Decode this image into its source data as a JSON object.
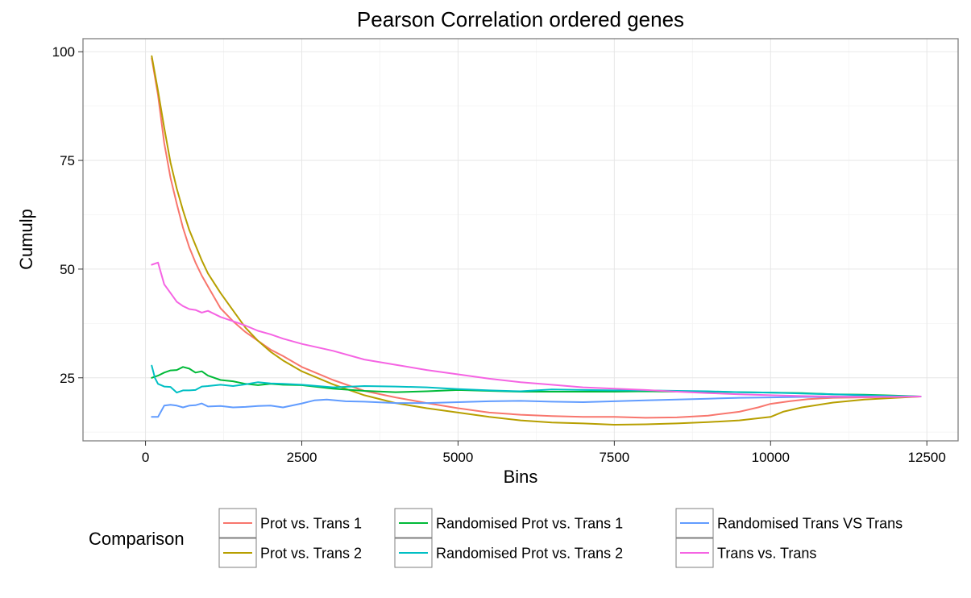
{
  "chart_data": {
    "type": "line",
    "title": "Pearson Correlation ordered genes",
    "xlabel": "Bins",
    "ylabel": "Cumulp",
    "xlim": [
      -1000,
      13000
    ],
    "ylim": [
      10.5,
      103
    ],
    "xticks": [
      0,
      2500,
      5000,
      7500,
      10000,
      12500
    ],
    "xtick_labels": [
      "0",
      "2500",
      "5000",
      "7500",
      "10000",
      "12500"
    ],
    "yticks": [
      25,
      50,
      75,
      100
    ],
    "ytick_labels": [
      "25",
      "50",
      "75",
      "100"
    ],
    "grid": true,
    "legend_title": "Comparison",
    "legend_position": "bottom",
    "series": [
      {
        "name": "Prot vs. Trans 1",
        "color": "#F8766D",
        "x": [
          100,
          200,
          300,
          400,
          500,
          600,
          700,
          800,
          900,
          1000,
          1200,
          1400,
          1600,
          1800,
          2000,
          2200,
          2500,
          3000,
          3500,
          4000,
          4500,
          5000,
          5500,
          6000,
          6500,
          7000,
          7500,
          8000,
          8500,
          9000,
          9500,
          9800,
          10000,
          10300,
          10600,
          11000,
          11500,
          12000,
          12400
        ],
        "y": [
          98.5,
          90,
          79,
          71,
          65,
          59.5,
          55,
          51.5,
          48.5,
          46,
          41,
          38,
          35.5,
          33.5,
          31.5,
          30,
          27.5,
          24.5,
          22,
          20.5,
          19.2,
          18,
          17,
          16.5,
          16.2,
          16,
          16,
          15.8,
          15.9,
          16.3,
          17.2,
          18.2,
          19,
          19.6,
          20.1,
          20.4,
          20.5,
          20.6,
          20.7
        ]
      },
      {
        "name": "Prot vs. Trans 2",
        "color": "#B79F00",
        "x": [
          100,
          200,
          300,
          400,
          500,
          600,
          700,
          800,
          900,
          1000,
          1200,
          1400,
          1600,
          1800,
          2000,
          2200,
          2500,
          3000,
          3500,
          4000,
          4500,
          5000,
          5500,
          6000,
          6500,
          7000,
          7500,
          8000,
          8500,
          9000,
          9500,
          10000,
          10200,
          10500,
          11000,
          11500,
          12000,
          12400
        ],
        "y": [
          99,
          91,
          82.5,
          74.5,
          68.5,
          63.5,
          59,
          55.5,
          52,
          49,
          44.5,
          40.5,
          36.5,
          33.5,
          31,
          29,
          26.5,
          23.5,
          21,
          19.2,
          18,
          17,
          16,
          15.2,
          14.7,
          14.5,
          14.2,
          14.3,
          14.5,
          14.8,
          15.2,
          16,
          17.2,
          18.2,
          19.3,
          20,
          20.4,
          20.7
        ]
      },
      {
        "name": "Randomised Prot vs. Trans 1",
        "color": "#00BA38",
        "x": [
          100,
          200,
          300,
          400,
          500,
          600,
          700,
          800,
          900,
          1000,
          1200,
          1400,
          1600,
          1800,
          2000,
          2200,
          2500,
          3000,
          3500,
          4000,
          4500,
          5000,
          5500,
          6000,
          6500,
          7000,
          7500,
          8000,
          8500,
          9000,
          9500,
          10000,
          10500,
          11000,
          11500,
          12000,
          12400
        ],
        "y": [
          25,
          25.5,
          26.2,
          26.7,
          26.8,
          27.5,
          27.1,
          26.2,
          26.5,
          25.5,
          24.5,
          24.2,
          23.6,
          23.3,
          23.6,
          23.4,
          23.3,
          22.5,
          22,
          21.7,
          21.9,
          22.2,
          22,
          21.8,
          21.8,
          21.8,
          21.8,
          21.9,
          21.8,
          21.8,
          21.7,
          21.6,
          21.5,
          21.2,
          21.1,
          20.9,
          20.7
        ]
      },
      {
        "name": "Randomised Prot vs. Trans 2",
        "color": "#00BFC4",
        "x": [
          100,
          150,
          200,
          300,
          400,
          500,
          600,
          700,
          800,
          900,
          1000,
          1200,
          1400,
          1600,
          1800,
          2000,
          2200,
          2500,
          3000,
          3500,
          4000,
          4500,
          5000,
          5500,
          6000,
          6500,
          7000,
          7500,
          8000,
          8500,
          9000,
          9500,
          10000,
          10500,
          11000,
          11500,
          12000,
          12400
        ],
        "y": [
          27.8,
          25,
          23.6,
          23,
          22.9,
          21.6,
          22.1,
          22.1,
          22.2,
          23,
          23.1,
          23.4,
          23.1,
          23.5,
          24,
          23.7,
          23.6,
          23.4,
          22.8,
          23.1,
          23,
          22.8,
          22.4,
          22.1,
          21.9,
          22.3,
          22.2,
          22.1,
          22.1,
          22,
          21.9,
          21.7,
          21.6,
          21.4,
          21.2,
          21,
          20.8,
          20.7
        ]
      },
      {
        "name": "Randomised Trans VS Trans",
        "color": "#619CFF",
        "x": [
          100,
          200,
          300,
          400,
          500,
          600,
          700,
          800,
          900,
          1000,
          1200,
          1400,
          1600,
          1800,
          2000,
          2200,
          2500,
          2700,
          2900,
          3200,
          3500,
          4000,
          4500,
          5000,
          5500,
          6000,
          6500,
          7000,
          7500,
          8000,
          8500,
          9000,
          9500,
          10000,
          10500,
          11000,
          11500,
          12000,
          12400
        ],
        "y": [
          16,
          16,
          18.6,
          18.8,
          18.6,
          18.2,
          18.6,
          18.7,
          19.1,
          18.4,
          18.5,
          18.2,
          18.3,
          18.5,
          18.6,
          18.2,
          19.1,
          19.8,
          20,
          19.6,
          19.5,
          19.2,
          19.2,
          19.4,
          19.6,
          19.7,
          19.5,
          19.4,
          19.6,
          19.8,
          20,
          20.2,
          20.4,
          20.5,
          20.6,
          20.6,
          20.7,
          20.7,
          20.7
        ]
      },
      {
        "name": "Trans vs. Trans",
        "color": "#F564E3",
        "x": [
          100,
          200,
          300,
          400,
          500,
          600,
          700,
          800,
          900,
          1000,
          1200,
          1400,
          1600,
          1800,
          2000,
          2200,
          2500,
          3000,
          3500,
          4000,
          4500,
          5000,
          5500,
          6000,
          6500,
          7000,
          7500,
          8000,
          8500,
          9000,
          9500,
          10000,
          10500,
          11000,
          11500,
          12000,
          12400
        ],
        "y": [
          51,
          51.5,
          46.5,
          44.5,
          42.5,
          41.5,
          40.8,
          40.6,
          40,
          40.4,
          39,
          38,
          37,
          35.8,
          35,
          34,
          32.8,
          31.2,
          29.2,
          28,
          26.8,
          25.8,
          24.8,
          24,
          23.4,
          22.8,
          22.5,
          22.2,
          21.8,
          21.5,
          21.2,
          21,
          20.8,
          20.7,
          20.6,
          20.6,
          20.7
        ]
      }
    ]
  }
}
